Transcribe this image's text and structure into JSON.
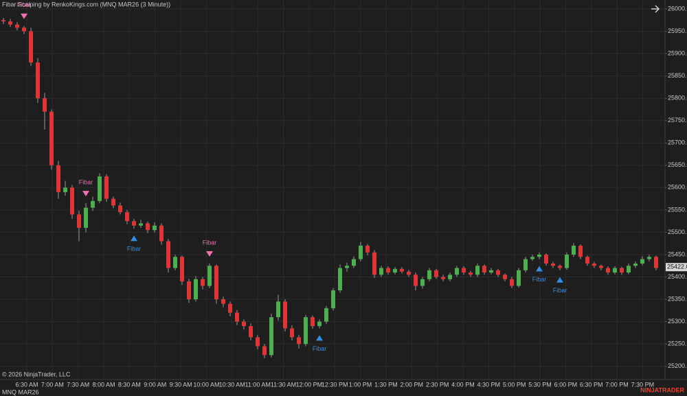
{
  "chart_data": {
    "type": "candlestick",
    "title": "Fibar Scalping by RenkoKings.com (MNQ MAR26 (3 Minute))",
    "instrument": "MNQ MAR26",
    "copyright": "© 2026 NinjaTrader, LLC",
    "brand": "NINJATRADER",
    "up_color": "#4cb050",
    "down_color": "#e03535",
    "sell_color": "#f06fb0",
    "buy_color": "#2f8fe8",
    "grid": true,
    "ylim": [
      25175,
      26020
    ],
    "yticks": [
      {
        "value": 25200,
        "label": "25200.00"
      },
      {
        "value": 25250,
        "label": "25250.00"
      },
      {
        "value": 25300,
        "label": "25300.00"
      },
      {
        "value": 25350,
        "label": "25350.00"
      },
      {
        "value": 25400,
        "label": "25400.00"
      },
      {
        "value": 25450,
        "label": "25450.00"
      },
      {
        "value": 25500,
        "label": "25500.00"
      },
      {
        "value": 25550,
        "label": "25550.00"
      },
      {
        "value": 25600,
        "label": "25600.00"
      },
      {
        "value": 25650,
        "label": "25650.00"
      },
      {
        "value": 25700,
        "label": "25700.00"
      },
      {
        "value": 25750,
        "label": "25750.00"
      },
      {
        "value": 25800,
        "label": "25800.00"
      },
      {
        "value": 25850,
        "label": "25850.00"
      },
      {
        "value": 25900,
        "label": "25900.00"
      },
      {
        "value": 25950,
        "label": "25950.00"
      },
      {
        "value": 26000,
        "label": "26000.00"
      }
    ],
    "xticks": [
      "6:30 AM",
      "7:00 AM",
      "7:30 AM",
      "8:00 AM",
      "8:30 AM",
      "9:00 AM",
      "9:30 AM",
      "10:00 AM",
      "10:30 AM",
      "11:00 AM",
      "11:30 AM",
      "12:00 PM",
      "12:30 PM",
      "1:00 PM",
      "1:30 PM",
      "2:00 PM",
      "2:30 PM",
      "4:00 PM",
      "4:30 PM",
      "5:00 PM",
      "5:30 PM",
      "6:00 PM",
      "6:30 PM",
      "7:00 PM",
      "7:30 PM"
    ],
    "last_price": {
      "value": 25422,
      "label": "25422.00"
    },
    "open": [
      25975,
      25972,
      25965,
      25958,
      25950,
      25880,
      25800,
      25770,
      25650,
      25590,
      25600,
      25540,
      25510,
      25555,
      25570,
      25625,
      25575,
      25560,
      25545,
      25525,
      25515,
      25520,
      25505,
      25515,
      25480,
      25420,
      25445,
      25390,
      25350,
      25395,
      25380,
      25425,
      25350,
      25340,
      25320,
      25300,
      25290,
      25265,
      25245,
      25225,
      25310,
      25345,
      25285,
      25265,
      25250,
      25310,
      25290,
      25300,
      25330,
      25370,
      25420,
      25425,
      25440,
      25470,
      25455,
      25405,
      25420,
      25410,
      25418,
      25412,
      25405,
      25380,
      25395,
      25415,
      25400,
      25395,
      25405,
      25420,
      25410,
      25405,
      25425,
      25410,
      25415,
      25405,
      25395,
      25380,
      25415,
      25440,
      25445,
      25450,
      25430,
      25425,
      25420,
      25450,
      25470,
      25445,
      25430,
      25425,
      25420,
      25410,
      25420,
      25410,
      25425,
      25430,
      25440,
      25445
    ],
    "high": [
      25980,
      25978,
      25970,
      25962,
      25958,
      25890,
      25812,
      25775,
      25660,
      25615,
      25606,
      25548,
      25565,
      25580,
      25632,
      25630,
      25580,
      25566,
      25550,
      25530,
      25528,
      25524,
      25522,
      25520,
      25485,
      25450,
      25448,
      25396,
      25402,
      25400,
      25430,
      25428,
      25356,
      25345,
      25326,
      25305,
      25296,
      25270,
      25250,
      25318,
      25360,
      25350,
      25292,
      25270,
      25315,
      25314,
      25305,
      25335,
      25375,
      25428,
      25432,
      25446,
      25478,
      25474,
      25460,
      25425,
      25424,
      25422,
      25422,
      25416,
      25410,
      25400,
      25420,
      25418,
      25405,
      25410,
      25425,
      25424,
      25414,
      25430,
      25428,
      25420,
      25418,
      25408,
      25400,
      25420,
      25445,
      25450,
      25455,
      25453,
      25434,
      25428,
      25455,
      25476,
      25473,
      25448,
      25434,
      25428,
      25424,
      25424,
      25423,
      25430,
      25435,
      25446,
      25450,
      25448
    ],
    "low": [
      25966,
      25960,
      25952,
      25944,
      25872,
      25790,
      25730,
      25640,
      25575,
      25582,
      25530,
      25480,
      25500,
      25548,
      25565,
      25568,
      25554,
      25540,
      25518,
      25508,
      25510,
      25498,
      25500,
      25472,
      25410,
      25415,
      25382,
      25342,
      25345,
      25372,
      25375,
      25340,
      25332,
      25312,
      25292,
      25282,
      25258,
      25238,
      25218,
      25220,
      25302,
      25278,
      25258,
      25240,
      25245,
      25284,
      25285,
      25295,
      25325,
      25365,
      25412,
      25420,
      25435,
      25448,
      25398,
      25400,
      25405,
      25406,
      25408,
      25400,
      25370,
      25374,
      25390,
      25396,
      25390,
      25390,
      25400,
      25405,
      25400,
      25400,
      25405,
      25406,
      25400,
      25390,
      25375,
      25376,
      25410,
      25436,
      25440,
      25425,
      25420,
      25415,
      25416,
      25445,
      25440,
      25425,
      25420,
      25415,
      25405,
      25406,
      25405,
      25406,
      25420,
      25426,
      25435,
      25415
    ],
    "close": [
      25972,
      25965,
      25958,
      25950,
      25880,
      25800,
      25770,
      25650,
      25590,
      25600,
      25540,
      25510,
      25555,
      25570,
      25625,
      25575,
      25560,
      25545,
      25525,
      25515,
      25520,
      25505,
      25515,
      25480,
      25420,
      25445,
      25390,
      25350,
      25395,
      25380,
      25425,
      25350,
      25340,
      25320,
      25300,
      25290,
      25265,
      25245,
      25225,
      25310,
      25345,
      25285,
      25265,
      25250,
      25310,
      25290,
      25300,
      25330,
      25370,
      25420,
      25425,
      25440,
      25470,
      25455,
      25405,
      25420,
      25410,
      25418,
      25412,
      25405,
      25380,
      25395,
      25415,
      25400,
      25395,
      25405,
      25420,
      25410,
      25405,
      25425,
      25410,
      25415,
      25405,
      25395,
      25380,
      25415,
      25440,
      25445,
      25450,
      25430,
      25425,
      25420,
      25450,
      25470,
      25445,
      25430,
      25425,
      25420,
      25410,
      25420,
      25410,
      25425,
      25430,
      25440,
      25445,
      25420
    ],
    "signals": [
      {
        "label": "Fibar",
        "side": "sell",
        "bar": 3
      },
      {
        "label": "Fibar",
        "side": "sell",
        "bar": 12
      },
      {
        "label": "Fibar",
        "side": "buy",
        "bar": 19
      },
      {
        "label": "Fibar",
        "side": "sell",
        "bar": 30
      },
      {
        "label": "Fibar",
        "side": "buy",
        "bar": 46
      },
      {
        "label": "Fibar",
        "side": "buy",
        "bar": 78
      },
      {
        "label": "Fibar",
        "side": "buy",
        "bar": 81
      }
    ]
  }
}
